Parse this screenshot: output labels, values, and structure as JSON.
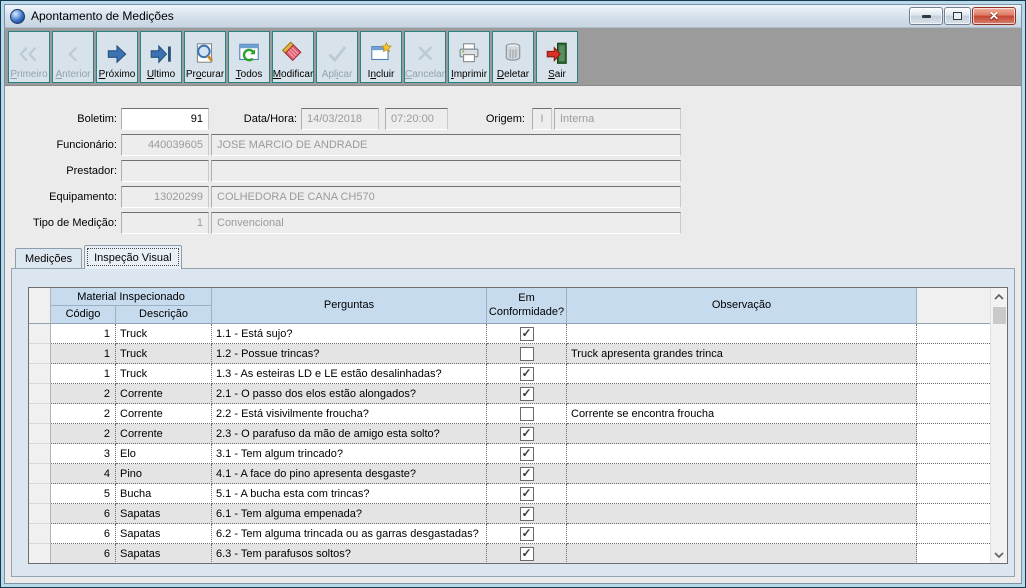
{
  "window": {
    "title": "Apontamento de Medições",
    "controls": [
      {
        "name": "minimize-button",
        "icon": "minimize-icon"
      },
      {
        "name": "maximize-button",
        "icon": "maximize-icon"
      },
      {
        "name": "close-button",
        "icon": "close-icon",
        "glyph": "✕"
      }
    ]
  },
  "colors": {
    "titlebar_top": "#eef4fa",
    "toolbar_button_face": "#d7e2ea",
    "toolbar_button_border": "#2a8181",
    "close_button_red": "#c04632",
    "grid_header_blue": "#c6dbee",
    "row_alt_gray": "#e4e4e4",
    "panel_blue_gray": "#dce6f0"
  },
  "toolbar": {
    "buttons": [
      {
        "label": "Primeiro",
        "accel": 0,
        "icon": "first-icon",
        "enabled": false
      },
      {
        "label": "Anterior",
        "accel": 0,
        "icon": "previous-icon",
        "enabled": false
      },
      {
        "label": "Próximo",
        "accel": 0,
        "icon": "next-icon",
        "enabled": true
      },
      {
        "label": "Ultimo",
        "accel": 0,
        "icon": "last-icon",
        "enabled": true
      },
      {
        "label": "Procurar",
        "accel": 2,
        "icon": "search-icon",
        "enabled": true
      },
      {
        "label": "Todos",
        "accel": 0,
        "icon": "refresh-all-icon",
        "enabled": true
      },
      {
        "label": "Modificar",
        "accel": 0,
        "icon": "modify-brush-icon",
        "enabled": true
      },
      {
        "label": "Aplicar",
        "accel": 3,
        "icon": "apply-check-icon",
        "enabled": false
      },
      {
        "label": "Incluir",
        "accel": 1,
        "icon": "include-star-icon",
        "enabled": true
      },
      {
        "label": "Cancelar",
        "accel": 0,
        "icon": "cancel-x-icon",
        "enabled": false
      },
      {
        "label": "Imprimir",
        "accel": 0,
        "icon": "printer-icon",
        "enabled": true
      },
      {
        "label": "Deletar",
        "accel": 0,
        "icon": "trash-icon",
        "enabled": true
      },
      {
        "label": "Sair",
        "accel": 0,
        "icon": "exit-door-icon",
        "enabled": true
      }
    ]
  },
  "form": {
    "boletim": {
      "label": "Boletim:",
      "value": "91"
    },
    "data_hora": {
      "label": "Data/Hora:",
      "date": "14/03/2018",
      "time": "07:20:00"
    },
    "origem": {
      "label": "Origem:",
      "code": "I",
      "name": "Interna"
    },
    "funcionario": {
      "label": "Funcionário:",
      "code": "440039605",
      "name": "JOSE MARCIO DE ANDRADE"
    },
    "prestador": {
      "label": "Prestador:",
      "code": "",
      "name": ""
    },
    "equipamento": {
      "label": "Equipamento:",
      "code": "13020299",
      "name": "COLHEDORA DE CANA CH570"
    },
    "tipo_medicao": {
      "label": "Tipo de Medição:",
      "code": "1",
      "name": "Convencional"
    }
  },
  "tabs": [
    {
      "label": "Medições",
      "active": false
    },
    {
      "label": "Inspeção Visual",
      "active": true
    }
  ],
  "grid": {
    "header": {
      "group": "Material Inspecionado",
      "codigo": "Código",
      "descricao": "Descrição",
      "perguntas": "Perguntas",
      "conformidade": "Em Conformidade?",
      "observacao": "Observação"
    },
    "rows": [
      {
        "codigo": "1",
        "descricao": "Truck",
        "pergunta": "1.1 - Está sujo?",
        "conforme": true,
        "observacao": ""
      },
      {
        "codigo": "1",
        "descricao": "Truck",
        "pergunta": "1.2 - Possue trincas?",
        "conforme": false,
        "observacao": "Truck apresenta grandes trinca"
      },
      {
        "codigo": "1",
        "descricao": "Truck",
        "pergunta": "1.3 - As esteiras LD e LE estão desalinhadas?",
        "conforme": true,
        "observacao": ""
      },
      {
        "codigo": "2",
        "descricao": "Corrente",
        "pergunta": "2.1 - O passo dos elos estão alongados?",
        "conforme": true,
        "observacao": ""
      },
      {
        "codigo": "2",
        "descricao": "Corrente",
        "pergunta": "2.2 - Está visivilmente froucha?",
        "conforme": false,
        "observacao": "Corrente se encontra froucha"
      },
      {
        "codigo": "2",
        "descricao": "Corrente",
        "pergunta": "2.3 - O parafuso da mão de amigo esta solto?",
        "conforme": true,
        "observacao": ""
      },
      {
        "codigo": "3",
        "descricao": "Elo",
        "pergunta": "3.1 - Tem algum trincado?",
        "conforme": true,
        "observacao": ""
      },
      {
        "codigo": "4",
        "descricao": "Pino",
        "pergunta": "4.1 - A face do pino apresenta desgaste?",
        "conforme": true,
        "observacao": ""
      },
      {
        "codigo": "5",
        "descricao": "Bucha",
        "pergunta": "5.1 - A bucha esta com trincas?",
        "conforme": true,
        "observacao": ""
      },
      {
        "codigo": "6",
        "descricao": "Sapatas",
        "pergunta": "6.1 - Tem alguma empenada?",
        "conforme": true,
        "observacao": ""
      },
      {
        "codigo": "6",
        "descricao": "Sapatas",
        "pergunta": "6.2 - Tem alguma trincada ou as garras desgastadas?",
        "conforme": true,
        "observacao": ""
      },
      {
        "codigo": "6",
        "descricao": "Sapatas",
        "pergunta": "6.3 - Tem parafusos soltos?",
        "conforme": true,
        "observacao": ""
      }
    ]
  }
}
